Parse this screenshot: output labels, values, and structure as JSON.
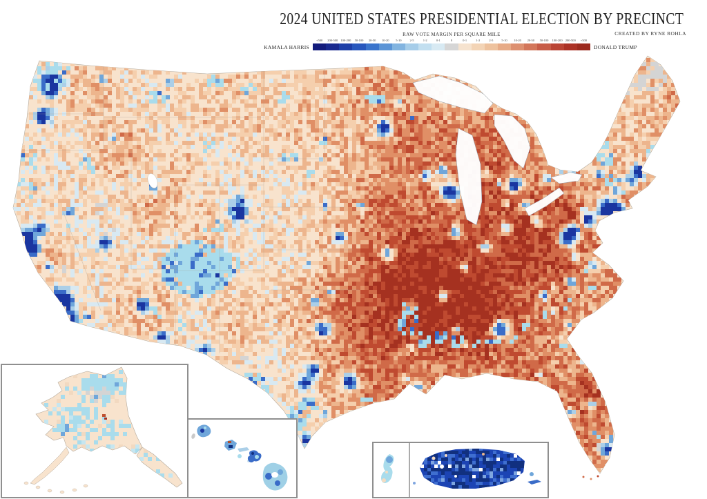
{
  "poster": {
    "title": "2024 UNITED STATES PRESIDENTIAL ELECTION BY PRECINCT",
    "subtitle": "RAW VOTE MARGIN PER SQUARE MILE",
    "credit": "CREATED BY RYNE ROHLA"
  },
  "legend": {
    "left_label": "KAMALA HARRIS",
    "right_label": "DONALD TRUMP",
    "tick_labels": [
      "+500",
      "200-500",
      "100-200",
      "50-100",
      "20-50",
      "10-20",
      "5-10",
      "2-5",
      "1-2",
      "0-1",
      "0",
      "0-1",
      "1-2",
      "2-5",
      "5-10",
      "10-20",
      "20-50",
      "50-100",
      "100-200",
      "200-500",
      "+500"
    ],
    "segment_colors": [
      "#131c7c",
      "#18298f",
      "#1d3fa8",
      "#2857bd",
      "#3a74cc",
      "#5b94d6",
      "#82b4e0",
      "#a6cde9",
      "#c2dff0",
      "#d8eaf3",
      "#d6d6d6",
      "#f6e3cf",
      "#f3d4b6",
      "#eec29e",
      "#e7ab87",
      "#dd9070",
      "#d3765a",
      "#c75c47",
      "#ba4434",
      "#ac3226",
      "#9c2a1e"
    ]
  },
  "map": {
    "base_land_color": "#f8e3cd",
    "water_color": "#ffffff",
    "no_data_color": "#d4d4d4",
    "rural_blue_color": "#a9dcec",
    "outline_color": "#b2a89a",
    "state_border_color": "#a89f92",
    "inset_frame_color": "#8f8f8f",
    "dem_shades": [
      "#d8e9f2",
      "#abcfe8",
      "#6fa6da",
      "#3a6cc8",
      "#1a35a0",
      "#11307f"
    ],
    "gop_shades": [
      "#f5cfad",
      "#edb58d",
      "#e08f66",
      "#d06a48",
      "#bf4a30",
      "#a53120"
    ]
  }
}
